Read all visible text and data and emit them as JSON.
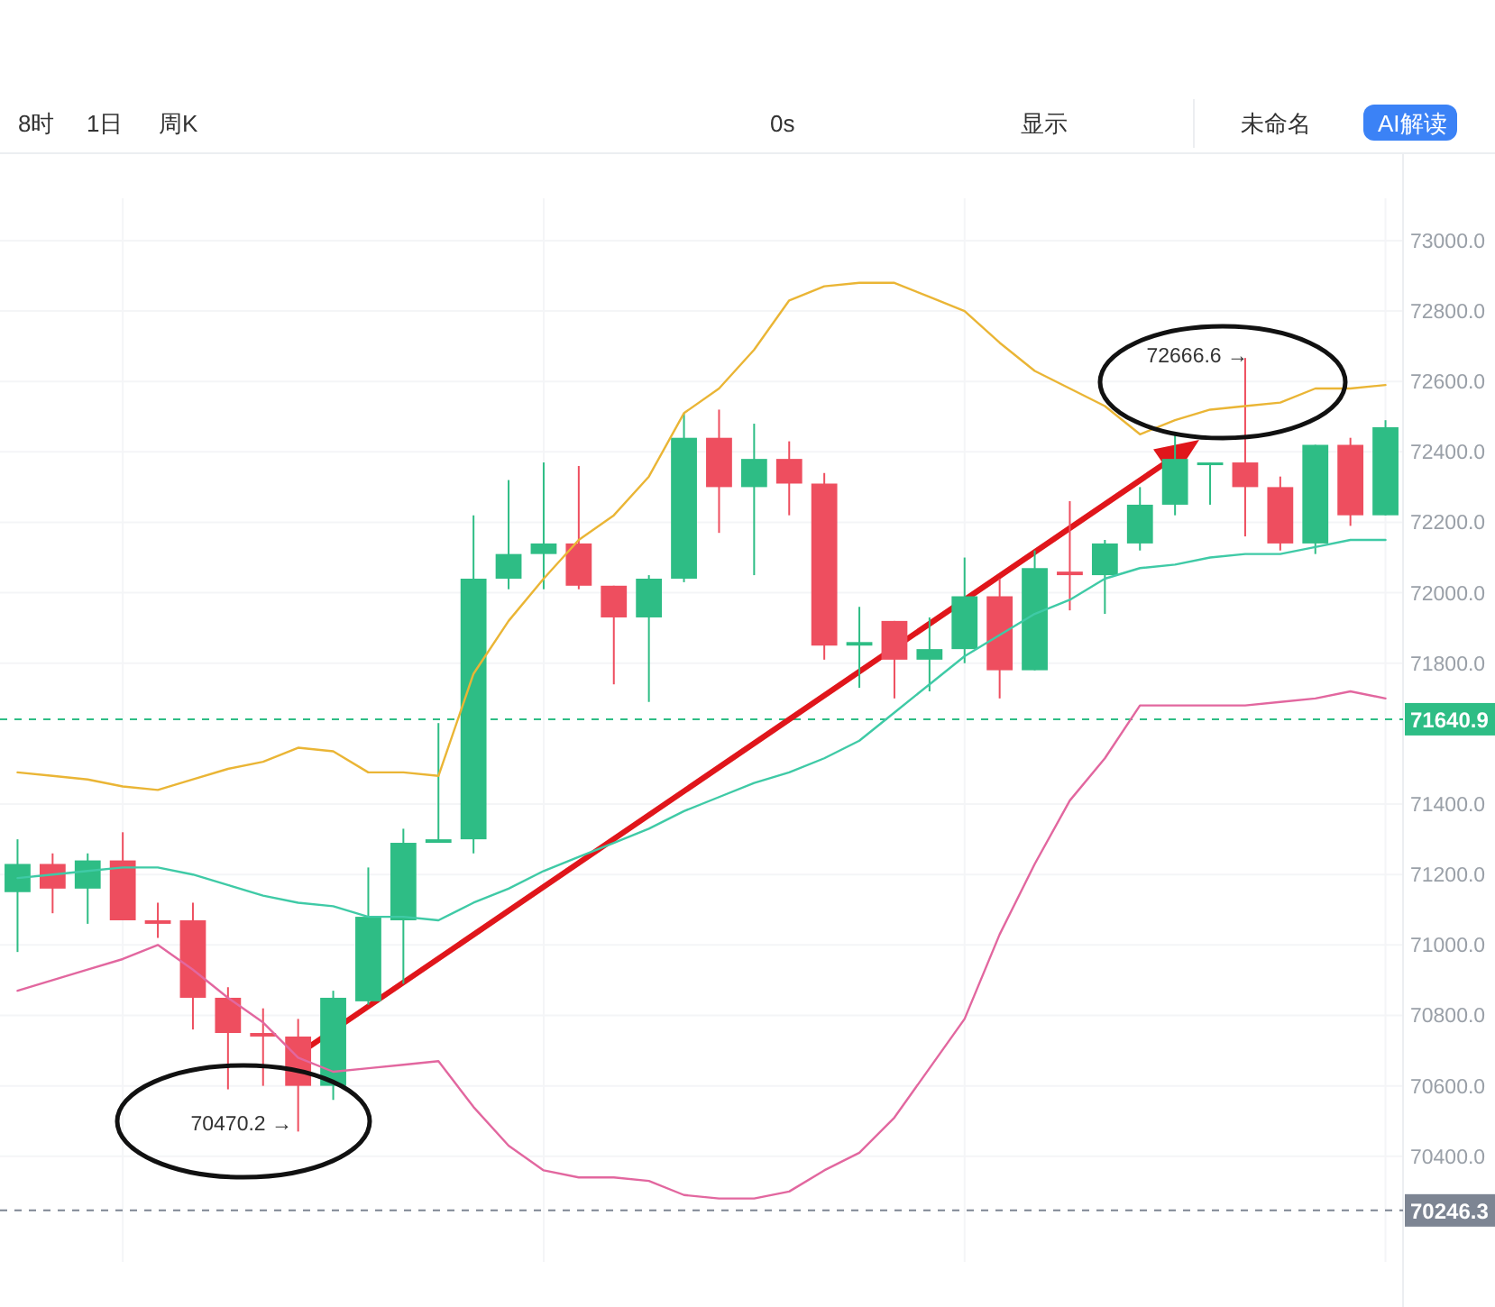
{
  "chart_data": {
    "type": "candlestick",
    "categories": [
      null,
      null,
      null,
      null,
      null,
      null,
      null,
      null,
      null,
      null,
      null,
      null,
      null,
      null,
      null,
      null,
      null,
      null,
      null,
      null,
      null,
      null,
      null,
      null,
      null,
      null,
      null,
      null,
      null,
      null,
      null,
      null,
      null,
      null,
      null,
      null,
      null,
      null,
      null,
      null
    ],
    "ohlc": [
      [
        71150,
        71300,
        70980,
        71230
      ],
      [
        71230,
        71260,
        71090,
        71160
      ],
      [
        71160,
        71260,
        71060,
        71240
      ],
      [
        71240,
        71320,
        71070,
        71070
      ],
      [
        71070,
        71120,
        71020,
        71060
      ],
      [
        71070,
        71120,
        70760,
        70850
      ],
      [
        70850,
        70880,
        70590,
        70750
      ],
      [
        70750,
        70820,
        70600,
        70740
      ],
      [
        70740,
        70790,
        70470.2,
        70600
      ],
      [
        70600,
        70870,
        70560,
        70850
      ],
      [
        70840,
        71220,
        70830,
        71080
      ],
      [
        71070,
        71330,
        70890,
        71290
      ],
      [
        71290,
        71630,
        71290,
        71300
      ],
      [
        71300,
        72220,
        71260,
        72040
      ],
      [
        72040,
        72320,
        72010,
        72110
      ],
      [
        72110,
        72370,
        72010,
        72140
      ],
      [
        72140,
        72360,
        72010,
        72020
      ],
      [
        72020,
        72020,
        71740,
        71930
      ],
      [
        71930,
        72050,
        71690,
        72040
      ],
      [
        72040,
        72510,
        72030,
        72440
      ],
      [
        72440,
        72520,
        72170,
        72300
      ],
      [
        72300,
        72480,
        72050,
        72380
      ],
      [
        72380,
        72430,
        72220,
        72310
      ],
      [
        72310,
        72340,
        71810,
        71850
      ],
      [
        71850,
        71960,
        71730,
        71860
      ],
      [
        71920,
        71920,
        71700,
        71810
      ],
      [
        71810,
        71930,
        71720,
        71840
      ],
      [
        71840,
        72100,
        71800,
        71990
      ],
      [
        71990,
        72040,
        71700,
        71780
      ],
      [
        71780,
        72120,
        71780,
        72070
      ],
      [
        72060,
        72260,
        71950,
        72050
      ],
      [
        72050,
        72150,
        71940,
        72140
      ],
      [
        72140,
        72300,
        72120,
        72250
      ],
      [
        72250,
        72450,
        72220,
        72380
      ],
      [
        72370,
        72370,
        72250,
        72370
      ],
      [
        72370,
        72666.6,
        72160,
        72300
      ],
      [
        72300,
        72330,
        72120,
        72140
      ],
      [
        72140,
        72420,
        72110,
        72420
      ],
      [
        72420,
        72440,
        72190,
        72220
      ],
      [
        72220,
        72490,
        72220,
        72470
      ]
    ],
    "colors": [
      "#2ebd85",
      "#ee4e5f",
      "#2ebd85",
      "#ee4e5f",
      "#ee4e5f",
      "#ee4e5f",
      "#ee4e5f",
      "#ee4e5f",
      "#ee4e5f",
      "#2ebd85",
      "#2ebd85",
      "#2ebd85",
      "#2ebd85",
      "#2ebd85",
      "#2ebd85",
      "#2ebd85",
      "#ee4e5f",
      "#ee4e5f",
      "#2ebd85",
      "#2ebd85",
      "#ee4e5f",
      "#2ebd85",
      "#ee4e5f",
      "#ee4e5f",
      "#2ebd85",
      "#ee4e5f",
      "#2ebd85",
      "#2ebd85",
      "#ee4e5f",
      "#2ebd85",
      "#ee4e5f",
      "#2ebd85",
      "#2ebd85",
      "#2ebd85",
      "#2ebd85",
      "#ee4e5f",
      "#ee4e5f",
      "#2ebd85",
      "#ee4e5f",
      "#2ebd85"
    ],
    "series": [
      {
        "type": "line",
        "color": "#eab535",
        "values": [
          71490,
          71480,
          71470,
          71450,
          71440,
          71470,
          71500,
          71520,
          71560,
          71550,
          71490,
          71490,
          71480,
          71770,
          71920,
          72040,
          72150,
          72220,
          72330,
          72510,
          72580,
          72690,
          72830,
          72870,
          72880,
          72880,
          72840,
          72800,
          72710,
          72630,
          72580,
          72530,
          72450,
          72490,
          72520,
          72530,
          72540,
          72580,
          72580,
          72590
        ]
      },
      {
        "type": "line",
        "color": "#3fcaa6",
        "values": [
          71190,
          71200,
          71210,
          71220,
          71220,
          71200,
          71170,
          71140,
          71120,
          71110,
          71080,
          71080,
          71070,
          71120,
          71160,
          71210,
          71250,
          71290,
          71330,
          71380,
          71420,
          71460,
          71490,
          71530,
          71580,
          71660,
          71740,
          71820,
          71880,
          71940,
          71980,
          72040,
          72070,
          72080,
          72100,
          72110,
          72110,
          72130,
          72150,
          72150
        ]
      },
      {
        "type": "line",
        "color": "#e2679f",
        "values": [
          70870,
          70900,
          70930,
          70960,
          71000,
          70930,
          70850,
          70780,
          70680,
          70640,
          70650,
          70660,
          70670,
          70540,
          70430,
          70360,
          70340,
          70340,
          70330,
          70290,
          70280,
          70280,
          70300,
          70360,
          70410,
          70510,
          70650,
          70790,
          71030,
          71230,
          71410,
          71530,
          71680,
          71680,
          71680,
          71680,
          71690,
          71700,
          71720,
          71700
        ]
      }
    ],
    "ylim": [
      70100,
      73120
    ],
    "yticks": [
      {
        "value": 70400,
        "label": "70400.0"
      },
      {
        "value": 70600,
        "label": "70600.0"
      },
      {
        "value": 70800,
        "label": "70800.0"
      },
      {
        "value": 71000,
        "label": "71000.0"
      },
      {
        "value": 71200,
        "label": "71200.0"
      },
      {
        "value": 71400,
        "label": "71400.0"
      },
      {
        "value": 71800,
        "label": "71800.0"
      },
      {
        "value": 72000,
        "label": "72000.0"
      },
      {
        "value": 72200,
        "label": "72200.0"
      },
      {
        "value": 72400,
        "label": "72400.0"
      },
      {
        "value": 72600,
        "label": "72600.0"
      },
      {
        "value": 72800,
        "label": "72800.0"
      },
      {
        "value": 73000,
        "label": "73000.0"
      }
    ],
    "grid": true,
    "ref_lines": [
      {
        "axis": "y",
        "value": 71640.9,
        "label": "71640.9",
        "color": "#2ebd85",
        "line_style": "dashed"
      },
      {
        "axis": "y",
        "value": 70246.3,
        "label": "70246.3",
        "color": "#7d8593",
        "line_style": "dashed"
      }
    ],
    "annotations": [
      "8时",
      "1日",
      "周K",
      "0s",
      "显示",
      "未命名",
      "AI解读",
      "70470.2 →",
      "72666.6 →"
    ]
  }
}
